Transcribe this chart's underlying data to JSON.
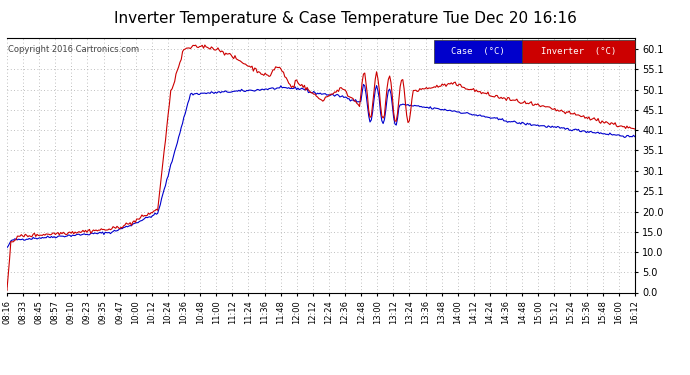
{
  "title": "Inverter Temperature & Case Temperature Tue Dec 20 16:16",
  "copyright": "Copyright 2016 Cartronics.com",
  "ylim": [
    0.0,
    63.0
  ],
  "yticks": [
    0.0,
    5.0,
    10.0,
    15.0,
    20.0,
    25.1,
    30.1,
    35.1,
    40.1,
    45.1,
    50.1,
    55.1,
    60.1
  ],
  "background_color": "#ffffff",
  "plot_bg_color": "#ffffff",
  "grid_color": "#aaaaaa",
  "case_color": "#0000cc",
  "inverter_color": "#cc0000",
  "legend_case_bg": "#0000cc",
  "legend_inv_bg": "#cc0000",
  "title_fontsize": 11,
  "xtick_labels": [
    "08:16",
    "08:33",
    "08:45",
    "08:57",
    "09:10",
    "09:23",
    "09:35",
    "09:47",
    "10:00",
    "10:12",
    "10:24",
    "10:36",
    "10:48",
    "11:00",
    "11:12",
    "11:24",
    "11:36",
    "11:48",
    "12:00",
    "12:12",
    "12:24",
    "12:36",
    "12:48",
    "13:00",
    "13:12",
    "13:24",
    "13:36",
    "13:48",
    "14:00",
    "14:12",
    "14:24",
    "14:36",
    "14:48",
    "15:00",
    "15:12",
    "15:24",
    "15:36",
    "15:48",
    "16:00",
    "16:12"
  ]
}
